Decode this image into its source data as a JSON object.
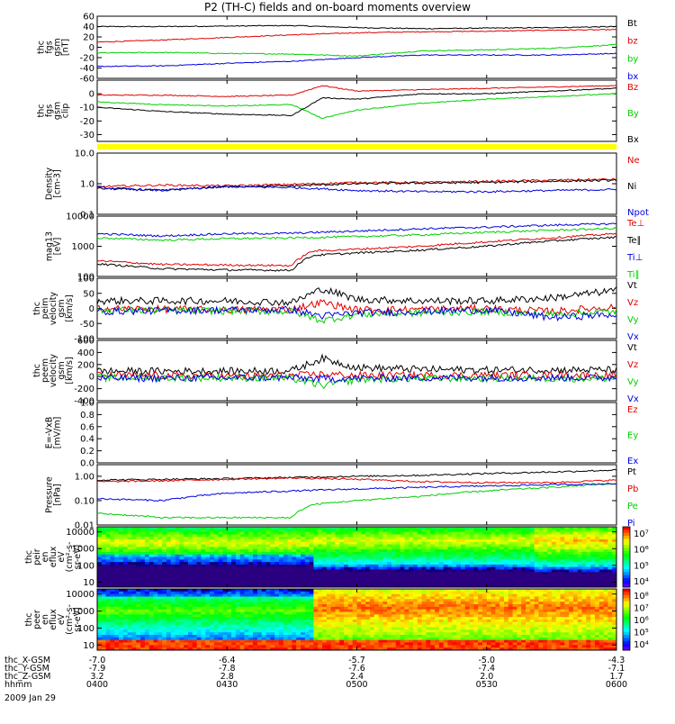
{
  "title": "P2 (TH-C) fields and on-board moments overview",
  "colors": {
    "black": "#000000",
    "red": "#e00000",
    "green": "#00d000",
    "blue": "#0000e0",
    "yellow": "#ffff00"
  },
  "chart_data": [
    {
      "type": "line",
      "ylabel": [
        "thc",
        "fgs",
        "gsm",
        "[nT]"
      ],
      "ylim": [
        -60,
        60
      ],
      "yticks": [
        "60",
        "40",
        "20",
        "0",
        "-20",
        "-40",
        "-60"
      ],
      "yvals": [
        60,
        40,
        20,
        0,
        -20,
        -40,
        -60
      ],
      "legend": [
        {
          "text": "Bt",
          "color": "black"
        },
        {
          "text": "bz",
          "color": "red"
        },
        {
          "text": "by",
          "color": "green"
        },
        {
          "text": "bx",
          "color": "blue"
        }
      ],
      "series": [
        {
          "name": "Bt",
          "color": "black",
          "x": [
            0,
            15,
            30,
            45,
            60,
            75,
            90,
            105,
            120
          ],
          "y": [
            40,
            40,
            41,
            42,
            38,
            36,
            37,
            38,
            40
          ]
        },
        {
          "name": "bz",
          "color": "red",
          "x": [
            0,
            15,
            30,
            45,
            60,
            75,
            90,
            105,
            120
          ],
          "y": [
            10,
            14,
            19,
            24,
            28,
            30,
            31,
            33,
            34
          ]
        },
        {
          "name": "by",
          "color": "green",
          "x": [
            0,
            15,
            30,
            45,
            60,
            75,
            90,
            105,
            120
          ],
          "y": [
            -11,
            -10,
            -12,
            -13,
            -17,
            -7,
            -5,
            -2,
            5
          ]
        },
        {
          "name": "bx",
          "color": "blue",
          "x": [
            0,
            15,
            30,
            45,
            60,
            75,
            90,
            105,
            120
          ],
          "y": [
            -37,
            -36,
            -31,
            -27,
            -20,
            -15,
            -15,
            -15,
            -12
          ]
        }
      ]
    },
    {
      "type": "line",
      "ylabel": [
        "thc",
        "fgs",
        "gsm",
        "clip"
      ],
      "ylim": [
        -35,
        10
      ],
      "yticks": [
        "0",
        "-10",
        "-20",
        "-30"
      ],
      "yvals": [
        0,
        -10,
        -20,
        -30
      ],
      "legend": [
        {
          "text": "Bz",
          "color": "red"
        },
        {
          "text": "By",
          "color": "green"
        },
        {
          "text": "Bx",
          "color": "black"
        }
      ],
      "series": [
        {
          "name": "Bz",
          "color": "red",
          "x": [
            0,
            15,
            30,
            45,
            52,
            60,
            75,
            90,
            105,
            120
          ],
          "y": [
            -1,
            -1,
            -2,
            -1,
            6,
            2,
            3,
            4,
            5,
            6
          ]
        },
        {
          "name": "By",
          "color": "green",
          "x": [
            0,
            15,
            30,
            45,
            52,
            60,
            75,
            90,
            105,
            120
          ],
          "y": [
            -6,
            -8,
            -9,
            -8,
            -18,
            -12,
            -7,
            -4,
            -2,
            0
          ]
        },
        {
          "name": "Bx",
          "color": "black",
          "x": [
            0,
            15,
            30,
            45,
            52,
            60,
            75,
            90,
            105,
            120
          ],
          "y": [
            -10,
            -13,
            -15,
            -16,
            -3,
            -4,
            0,
            0,
            2,
            4
          ]
        }
      ]
    },
    {
      "type": "line",
      "ylabel": [
        "Density",
        "[cm-3]"
      ],
      "ylim": [
        0.1,
        10
      ],
      "log": true,
      "yticks": [
        "10.0",
        "1.0",
        "0.1"
      ],
      "yvals": [
        10,
        1,
        0.1
      ],
      "legend": [
        {
          "text": "Ne",
          "color": "red"
        },
        {
          "text": "Ni",
          "color": "black"
        },
        {
          "text": "Npot",
          "color": "blue"
        }
      ],
      "series": [
        {
          "name": "Ne",
          "color": "red",
          "x": [
            0,
            15,
            30,
            45,
            60,
            75,
            90,
            105,
            120
          ],
          "y": [
            0.8,
            0.9,
            0.85,
            0.95,
            1.1,
            1.1,
            1.2,
            1.3,
            1.4
          ]
        },
        {
          "name": "Ni",
          "color": "black",
          "x": [
            0,
            15,
            30,
            45,
            60,
            75,
            90,
            105,
            120
          ],
          "y": [
            0.7,
            0.6,
            0.8,
            0.85,
            1.0,
            1.05,
            1.1,
            1.2,
            1.3
          ]
        },
        {
          "name": "Npot",
          "color": "blue",
          "x": [
            0,
            15,
            30,
            45,
            60,
            75,
            90,
            105,
            120
          ],
          "y": [
            0.75,
            0.6,
            0.8,
            0.75,
            0.6,
            0.55,
            0.55,
            0.6,
            0.65
          ]
        }
      ]
    },
    {
      "type": "line",
      "ylabel": [
        "mag13",
        "[eV]"
      ],
      "ylim": [
        100,
        10000
      ],
      "log": true,
      "yticks": [
        "10000",
        "1000",
        "100"
      ],
      "yvals": [
        10000,
        1000,
        100
      ],
      "legend": [
        {
          "text": "Te⊥",
          "color": "red"
        },
        {
          "text": "Te∥",
          "color": "black"
        },
        {
          "text": "Ti⊥",
          "color": "blue"
        },
        {
          "text": "Ti∥",
          "color": "green"
        }
      ],
      "series": [
        {
          "name": "Ti⊥",
          "color": "blue",
          "x": [
            0,
            15,
            30,
            45,
            60,
            75,
            90,
            105,
            120
          ],
          "y": [
            2600,
            2200,
            2600,
            2700,
            3200,
            3800,
            4300,
            5000,
            5600
          ]
        },
        {
          "name": "Ti∥",
          "color": "green",
          "x": [
            0,
            15,
            30,
            45,
            60,
            75,
            90,
            105,
            120
          ],
          "y": [
            1900,
            1600,
            1800,
            1900,
            2100,
            2400,
            2900,
            3400,
            3900
          ]
        },
        {
          "name": "Te⊥",
          "color": "red",
          "x": [
            0,
            15,
            30,
            45,
            50,
            60,
            75,
            90,
            105,
            120
          ],
          "y": [
            330,
            250,
            240,
            230,
            700,
            800,
            1000,
            1400,
            1900,
            2600
          ]
        },
        {
          "name": "Te∥",
          "color": "black",
          "x": [
            0,
            15,
            30,
            45,
            50,
            60,
            75,
            90,
            105,
            120
          ],
          "y": [
            260,
            180,
            165,
            160,
            500,
            600,
            750,
            1000,
            1500,
            2000
          ]
        }
      ]
    },
    {
      "type": "line",
      "ylabel": [
        "thc",
        "peim",
        "velocity",
        "gsm",
        "[km/s]"
      ],
      "ylim": [
        -100,
        100
      ],
      "yticks": [
        "100",
        "50",
        "0",
        "-50",
        "-100"
      ],
      "yvals": [
        100,
        50,
        0,
        -50,
        -100
      ],
      "legend": [
        {
          "text": "Vt",
          "color": "black"
        },
        {
          "text": "Vz",
          "color": "red"
        },
        {
          "text": "Vy",
          "color": "green"
        },
        {
          "text": "Vx",
          "color": "blue"
        }
      ],
      "series": [
        {
          "name": "Vt",
          "color": "black",
          "x": [
            0,
            30,
            45,
            52,
            60,
            75,
            90,
            105,
            120
          ],
          "y": [
            25,
            25,
            20,
            65,
            30,
            25,
            25,
            35,
            60
          ]
        },
        {
          "name": "Vz",
          "color": "red",
          "x": [
            0,
            30,
            45,
            52,
            60,
            75,
            90,
            105,
            120
          ],
          "y": [
            0,
            -5,
            -2,
            20,
            -5,
            -3,
            0,
            -10,
            5
          ]
        },
        {
          "name": "Vy",
          "color": "green",
          "x": [
            0,
            30,
            45,
            52,
            60,
            75,
            90,
            105,
            120
          ],
          "y": [
            -5,
            -8,
            -10,
            -40,
            -20,
            -15,
            -10,
            -20,
            -10
          ]
        },
        {
          "name": "Vx",
          "color": "blue",
          "x": [
            0,
            30,
            45,
            52,
            60,
            75,
            90,
            105,
            120
          ],
          "y": [
            -10,
            -5,
            -5,
            -25,
            -15,
            -10,
            -5,
            -30,
            -20
          ]
        }
      ]
    },
    {
      "type": "line",
      "ylabel": [
        "thc",
        "peem",
        "velocity",
        "gsm",
        "[km/s]"
      ],
      "ylim": [
        -400,
        600
      ],
      "yticks": [
        "600",
        "400",
        "200",
        "0",
        "-200",
        "-400"
      ],
      "yvals": [
        600,
        400,
        200,
        0,
        -200,
        -400
      ],
      "legend": [
        {
          "text": "Vt",
          "color": "black"
        },
        {
          "text": "Vz",
          "color": "red"
        },
        {
          "text": "Vy",
          "color": "green"
        },
        {
          "text": "Vx",
          "color": "blue"
        }
      ],
      "series": [
        {
          "name": "Vt",
          "color": "black",
          "x": [
            0,
            30,
            45,
            52,
            60,
            75,
            90,
            105,
            120
          ],
          "y": [
            90,
            90,
            100,
            300,
            150,
            120,
            110,
            110,
            110
          ]
        },
        {
          "name": "Vz",
          "color": "red",
          "x": [
            0,
            30,
            45,
            52,
            60,
            75,
            90,
            105,
            120
          ],
          "y": [
            20,
            10,
            15,
            40,
            20,
            20,
            20,
            25,
            20
          ]
        },
        {
          "name": "Vy",
          "color": "green",
          "x": [
            0,
            30,
            45,
            52,
            60,
            75,
            90,
            105,
            120
          ],
          "y": [
            -20,
            -20,
            -30,
            -150,
            -50,
            -30,
            -30,
            -30,
            -30
          ]
        },
        {
          "name": "Vx",
          "color": "blue",
          "x": [
            0,
            30,
            45,
            52,
            60,
            75,
            90,
            105,
            120
          ],
          "y": [
            -30,
            -20,
            -20,
            -40,
            -30,
            -20,
            -20,
            -20,
            -20
          ]
        }
      ]
    },
    {
      "type": "line",
      "ylabel": [
        "E=-VxB",
        "[mV/m]"
      ],
      "ylim": [
        0,
        1
      ],
      "yticks": [
        "1.0",
        "0.8",
        "0.6",
        "0.4",
        "0.2",
        "0.0"
      ],
      "yvals": [
        1,
        0.8,
        0.6,
        0.4,
        0.2,
        0
      ],
      "legend": [
        {
          "text": "Ez",
          "color": "red"
        },
        {
          "text": "Ey",
          "color": "green"
        },
        {
          "text": "Ex",
          "color": "blue"
        }
      ],
      "series": []
    },
    {
      "type": "line",
      "ylabel": [
        "Pressure",
        "[nPa]"
      ],
      "ylim": [
        0.01,
        3
      ],
      "log": true,
      "yticks": [
        "1.00",
        "0.10",
        "0.01"
      ],
      "yvals": [
        1,
        0.1,
        0.01
      ],
      "legend": [
        {
          "text": "Pt",
          "color": "black"
        },
        {
          "text": "Pb",
          "color": "red"
        },
        {
          "text": "Pe",
          "color": "green"
        },
        {
          "text": "Pi",
          "color": "blue"
        }
      ],
      "series": [
        {
          "name": "Pt",
          "color": "black",
          "x": [
            0,
            15,
            30,
            45,
            60,
            75,
            90,
            105,
            120
          ],
          "y": [
            0.7,
            0.75,
            0.8,
            0.9,
            1.0,
            1.1,
            1.3,
            1.5,
            1.8
          ]
        },
        {
          "name": "Pb",
          "color": "red",
          "x": [
            0,
            15,
            30,
            45,
            60,
            75,
            90,
            105,
            120
          ],
          "y": [
            0.6,
            0.65,
            0.75,
            0.85,
            0.75,
            0.6,
            0.55,
            0.55,
            0.7
          ]
        },
        {
          "name": "Pe",
          "color": "green",
          "x": [
            0,
            15,
            30,
            45,
            50,
            60,
            75,
            90,
            105,
            120
          ],
          "y": [
            0.03,
            0.02,
            0.02,
            0.02,
            0.07,
            0.1,
            0.15,
            0.25,
            0.35,
            0.5
          ]
        },
        {
          "name": "Pi",
          "color": "blue",
          "x": [
            0,
            15,
            30,
            45,
            60,
            75,
            90,
            105,
            120
          ],
          "y": [
            0.12,
            0.1,
            0.2,
            0.25,
            0.3,
            0.35,
            0.4,
            0.45,
            0.5
          ]
        }
      ]
    },
    {
      "type": "heatmap",
      "ylabel": [
        "thc",
        "peir",
        "en",
        "eflux",
        "eV",
        "(cm²-s-",
        "sr-eV)"
      ],
      "yticks": [
        "10000",
        "1000",
        "100",
        "10"
      ],
      "yvals": [
        10000,
        1000,
        100,
        10
      ],
      "ylim": [
        5,
        20000
      ],
      "log": true,
      "colorbar": {
        "ticks": [
          "10⁷",
          "10⁶",
          "10⁵",
          "10⁴"
        ],
        "scheme": "rainbow"
      }
    },
    {
      "type": "heatmap",
      "ylabel": [
        "thc",
        "peer",
        "en",
        "eflux",
        "eV",
        "(cm²-s-",
        "sr-eV)"
      ],
      "yticks": [
        "10000",
        "1000",
        "100",
        "10"
      ],
      "yvals": [
        10000,
        1000,
        100,
        10
      ],
      "ylim": [
        5,
        20000
      ],
      "log": true,
      "colorbar": {
        "ticks": [
          "10⁸",
          "10⁷",
          "10⁶",
          "10⁵",
          "10⁴"
        ],
        "scheme": "rainbow"
      }
    }
  ],
  "footer": {
    "rows": [
      {
        "label": "thc_X-GSM",
        "values": [
          "-7.0",
          "-6.4",
          "-5.7",
          "-5.0",
          "-4.3"
        ]
      },
      {
        "label": "thc_Y-GSM",
        "values": [
          "-7.9",
          "-7.8",
          "-7.6",
          "-7.4",
          "-7.1"
        ]
      },
      {
        "label": "thc_Z-GSM",
        "values": [
          "3.2",
          "2.8",
          "2.4",
          "2.0",
          "1.7"
        ]
      },
      {
        "label": "hhmm",
        "values": [
          "0400",
          "0430",
          "0500",
          "0530",
          "0600"
        ]
      }
    ],
    "date": "2009 Jan 29"
  }
}
